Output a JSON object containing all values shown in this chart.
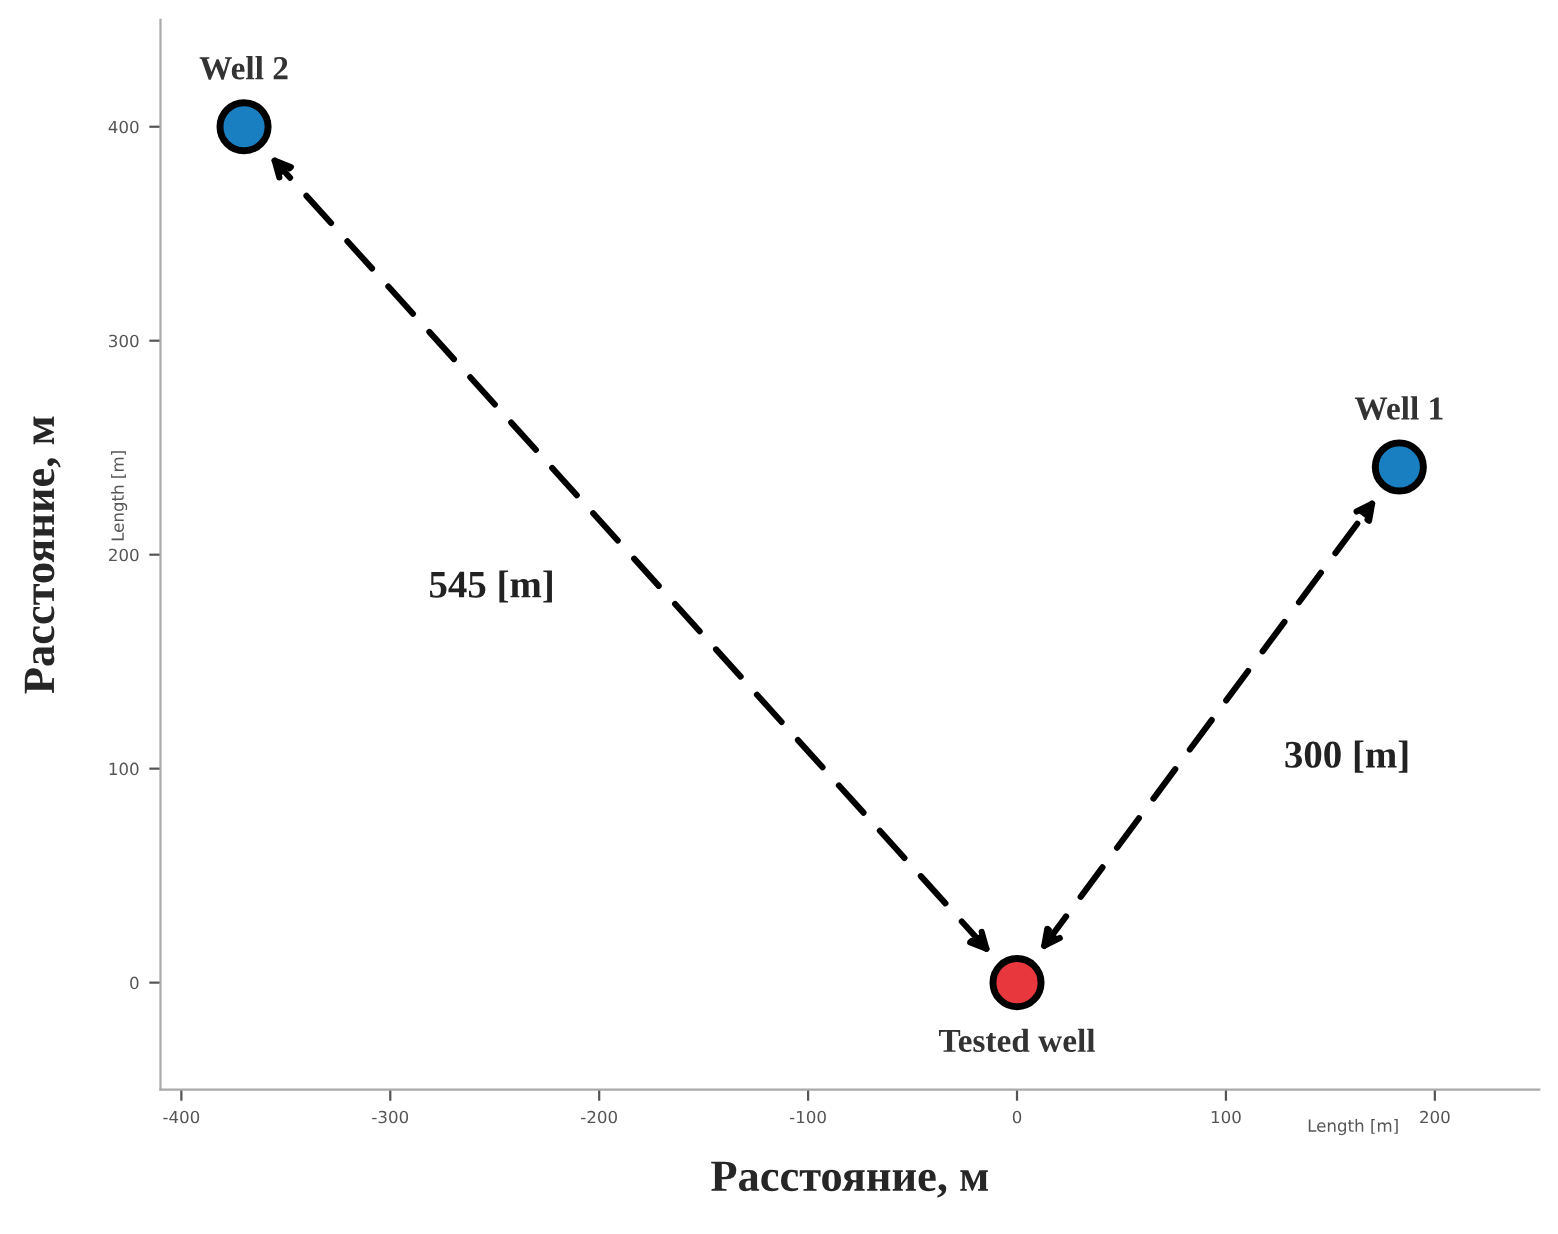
{
  "chart_data": {
    "type": "scatter",
    "xlabel": "Расстояние, м",
    "ylabel": "Расстояние, м",
    "series": [
      {
        "name": "Tested well",
        "color": "#e8383d",
        "x": [
          0
        ],
        "values": [
          0
        ]
      },
      {
        "name": "Well 1",
        "color": "#1a7fc1",
        "x": [
          183
        ],
        "values": [
          241
        ]
      },
      {
        "name": "Well 2",
        "color": "#1a7fc1",
        "x": [
          -370
        ],
        "values": [
          400
        ]
      }
    ],
    "annotations": [
      "Length [m]",
      "Length [m]",
      "300 [m]",
      "545 [m]"
    ],
    "xlim": [
      -410,
      250
    ],
    "ylim": [
      -50,
      450
    ],
    "xticks": [
      -400,
      -300,
      -200,
      -100,
      0,
      100,
      200
    ],
    "yticks": [
      0,
      100,
      200,
      300,
      400
    ],
    "marker": "circle",
    "grid": false,
    "legend": false
  }
}
